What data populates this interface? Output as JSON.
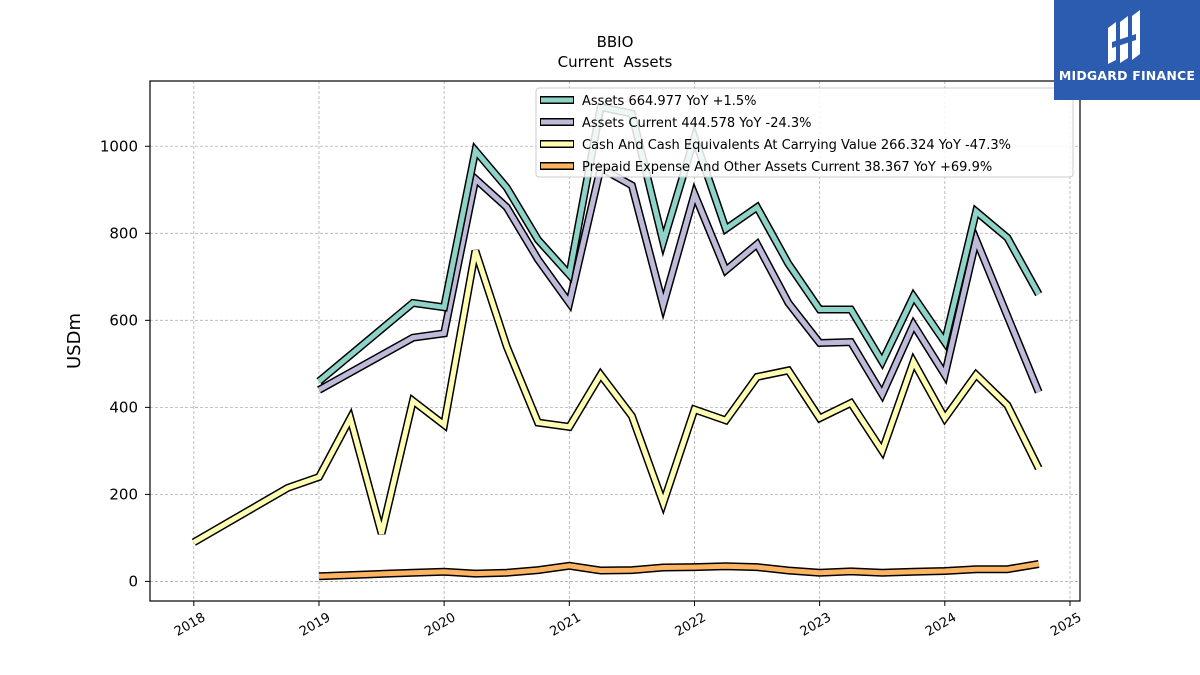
{
  "chart_data": {
    "type": "line",
    "title": "BBIO",
    "subtitle": "Current  Assets",
    "ylabel": "USDm",
    "xlabel": "",
    "xlim": [
      2017.65,
      2025.08
    ],
    "ylim": [
      -45,
      1150
    ],
    "x_ticks": [
      "2018",
      "2019",
      "2020",
      "2021",
      "2022",
      "2023",
      "2024",
      "2025"
    ],
    "y_ticks": [
      0,
      200,
      400,
      600,
      800,
      1000
    ],
    "grid": true,
    "legend_position": "top-right",
    "series": [
      {
        "name": "Assets",
        "legend": "Assets  664.977 YoY +1.5%",
        "color": "#8dd3c7",
        "x": [
          2019.0,
          2019.75,
          2020.0,
          2020.25,
          2020.5,
          2020.75,
          2021.0,
          2021.25,
          2021.5,
          2021.75,
          2022.0,
          2022.25,
          2022.5,
          2022.75,
          2023.0,
          2023.25,
          2023.5,
          2023.75,
          2024.0,
          2024.25,
          2024.5,
          2024.75
        ],
        "values": [
          460,
          640,
          630,
          990,
          905,
          785,
          705,
          1090,
          1075,
          780,
          1020,
          810,
          860,
          730,
          625,
          625,
          505,
          655,
          550,
          850,
          790,
          660
        ]
      },
      {
        "name": "Assets Current",
        "legend": "Assets Current  444.578 YoY -24.3%",
        "color": "#bebada",
        "x": [
          2019.0,
          2019.75,
          2020.0,
          2020.25,
          2020.5,
          2020.75,
          2021.0,
          2021.25,
          2021.5,
          2021.75,
          2022.0,
          2022.25,
          2022.5,
          2022.75,
          2023.0,
          2023.25,
          2023.5,
          2023.75,
          2024.0,
          2024.25,
          2024.5,
          2024.75
        ],
        "values": [
          440,
          560,
          570,
          925,
          860,
          740,
          640,
          950,
          910,
          635,
          890,
          715,
          775,
          640,
          548,
          550,
          430,
          590,
          475,
          785,
          610,
          435
        ]
      },
      {
        "name": "Cash And Cash Equivalents At Carrying Value",
        "legend": "Cash And Cash Equivalents At Carrying Value  266.324 YoY -47.3%",
        "color": "#ffffb3",
        "x": [
          2018.0,
          2018.75,
          2019.0,
          2019.25,
          2019.5,
          2019.75,
          2020.0,
          2020.25,
          2020.5,
          2020.75,
          2021.0,
          2021.25,
          2021.5,
          2021.75,
          2022.0,
          2022.25,
          2022.5,
          2022.75,
          2023.0,
          2023.25,
          2023.5,
          2023.75,
          2024.0,
          2024.25,
          2024.5,
          2024.75
        ],
        "values": [
          90,
          215,
          240,
          375,
          110,
          415,
          360,
          760,
          540,
          365,
          355,
          475,
          380,
          180,
          395,
          370,
          470,
          485,
          375,
          410,
          300,
          505,
          375,
          475,
          405,
          260
        ]
      },
      {
        "name": "Prepaid Expense And Other Assets Current",
        "legend": "Prepaid Expense And Other Assets Current  38.367 YoY +69.9%",
        "color": "#fdb462",
        "x": [
          2019.0,
          2019.75,
          2020.0,
          2020.25,
          2020.5,
          2020.75,
          2021.0,
          2021.25,
          2021.5,
          2021.75,
          2022.0,
          2022.25,
          2022.5,
          2022.75,
          2023.0,
          2023.25,
          2023.5,
          2023.75,
          2024.0,
          2024.25,
          2024.5,
          2024.75
        ],
        "values": [
          12,
          20,
          22,
          18,
          20,
          26,
          36,
          25,
          26,
          32,
          33,
          35,
          33,
          25,
          20,
          23,
          20,
          22,
          24,
          28,
          28,
          40
        ]
      }
    ]
  },
  "logo": {
    "text": "MIDGARD FINANCE"
  }
}
